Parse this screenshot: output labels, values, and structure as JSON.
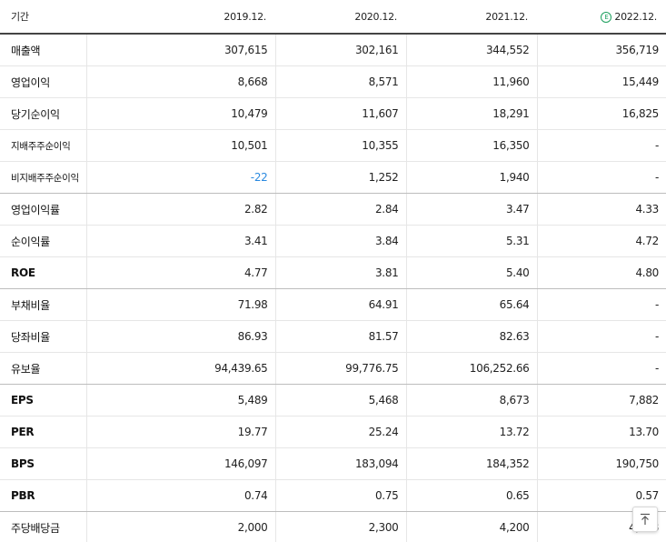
{
  "table": {
    "header": {
      "label": "기간",
      "columns": [
        "2019.12.",
        "2020.12.",
        "2021.12.",
        "2022.12."
      ],
      "estimate_icon": "estimate-icon",
      "estimate_icon_glyph": "E"
    },
    "rows": [
      {
        "label": "매출액",
        "values": [
          "307,615",
          "302,161",
          "344,552",
          "356,719"
        ]
      },
      {
        "label": "영업이익",
        "values": [
          "8,668",
          "8,571",
          "11,960",
          "15,449"
        ]
      },
      {
        "label": "당기순이익",
        "values": [
          "10,479",
          "11,607",
          "18,291",
          "16,825"
        ]
      },
      {
        "label": "지배주주순이익",
        "values": [
          "10,501",
          "10,355",
          "16,350",
          "-"
        ]
      },
      {
        "label": "비지배주주순이익",
        "values": [
          "-22",
          "1,252",
          "1,940",
          "-"
        ]
      },
      {
        "label": "영업이익률",
        "values": [
          "2.82",
          "2.84",
          "3.47",
          "4.33"
        ]
      },
      {
        "label": "순이익률",
        "values": [
          "3.41",
          "3.84",
          "5.31",
          "4.72"
        ]
      },
      {
        "label": "ROE",
        "values": [
          "4.77",
          "3.81",
          "5.40",
          "4.80"
        ]
      },
      {
        "label": "부채비율",
        "values": [
          "71.98",
          "64.91",
          "65.64",
          "-"
        ]
      },
      {
        "label": "당좌비율",
        "values": [
          "86.93",
          "81.57",
          "82.63",
          "-"
        ]
      },
      {
        "label": "유보율",
        "values": [
          "94,439.65",
          "99,776.75",
          "106,252.66",
          "-"
        ]
      },
      {
        "label": "EPS",
        "values": [
          "5,489",
          "5,468",
          "8,673",
          "7,882"
        ]
      },
      {
        "label": "PER",
        "values": [
          "19.77",
          "25.24",
          "13.72",
          "13.70"
        ]
      },
      {
        "label": "BPS",
        "values": [
          "146,097",
          "183,094",
          "184,352",
          "190,750"
        ]
      },
      {
        "label": "PBR",
        "values": [
          "0.74",
          "0.75",
          "0.65",
          "0.57"
        ]
      },
      {
        "label": "주당배당금",
        "values": [
          "2,000",
          "2,300",
          "4,200",
          "4,488"
        ]
      }
    ]
  },
  "scroll_top_button": {
    "icon": "arrow-up-to-top-icon"
  },
  "colors": {
    "negative": "#2b8ae0",
    "estimate": "#1ea05f",
    "header_rule": "#444444"
  }
}
